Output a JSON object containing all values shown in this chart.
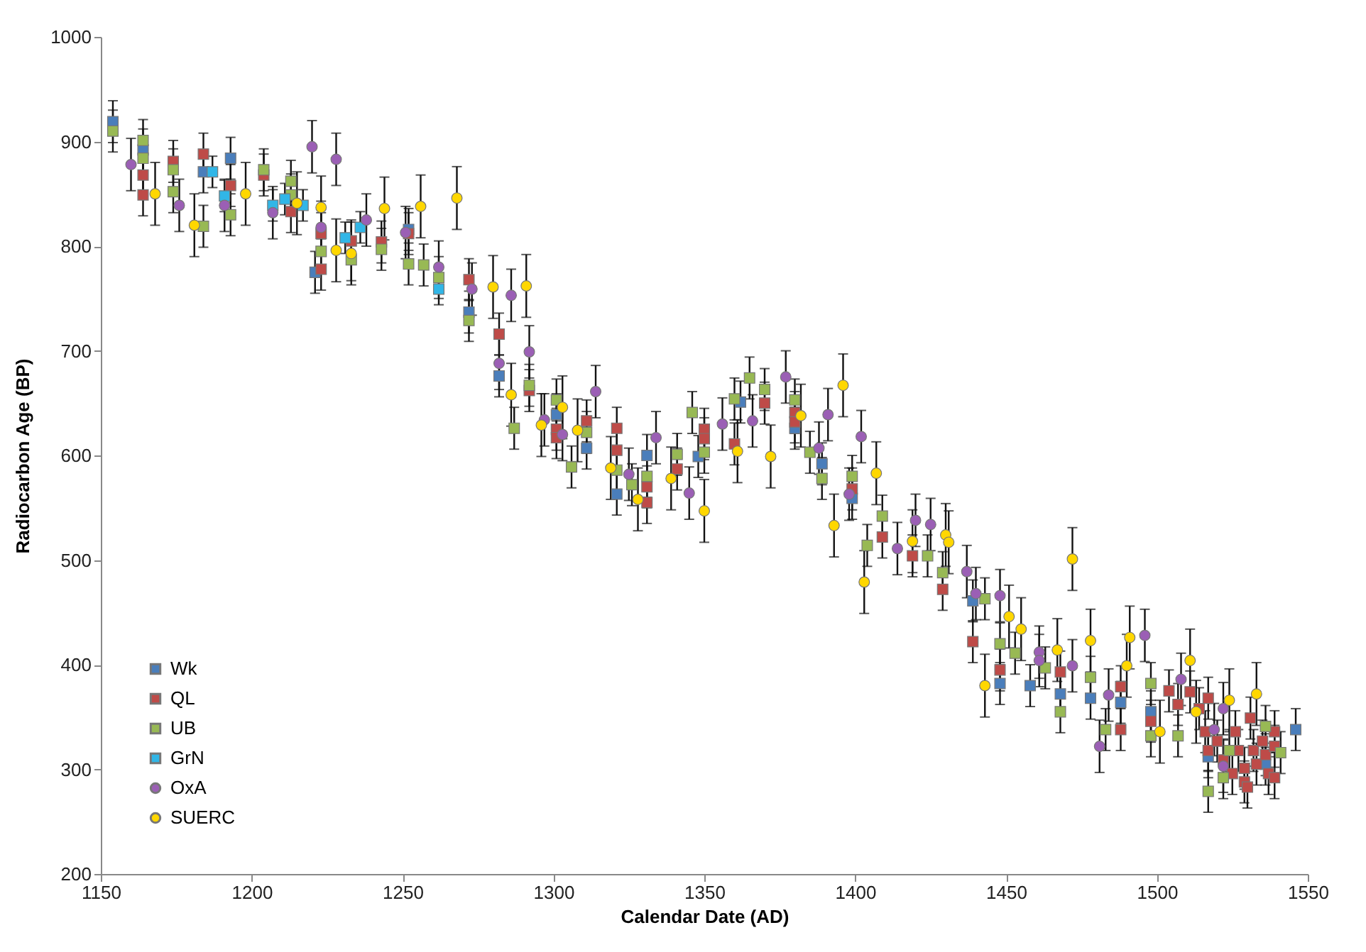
{
  "chart_data": {
    "type": "scatter",
    "xlabel": "Calendar Date (AD)",
    "ylabel": "Radiocarbon Age (BP)",
    "xlim": [
      1150,
      1550
    ],
    "xticks": [
      1150,
      1200,
      1250,
      1300,
      1350,
      1400,
      1450,
      1500,
      1550
    ],
    "ylim": [
      200,
      1000
    ],
    "yticks": [
      200,
      300,
      400,
      500,
      600,
      700,
      800,
      900,
      1000
    ],
    "legend": "bottom left",
    "series": [
      {
        "name": "Wk",
        "color": "#4a7ebb",
        "marker": "square",
        "x": [
          1154,
          1164,
          1184,
          1193,
          1221,
          1252,
          1272,
          1282,
          1301,
          1311,
          1321,
          1331,
          1348,
          1362,
          1380,
          1389,
          1399,
          1439,
          1448,
          1458,
          1468,
          1478,
          1488,
          1498,
          1517,
          1536,
          1546
        ],
        "values": [
          919,
          892,
          871,
          884,
          775,
          816,
          737,
          676,
          639,
          607,
          563,
          600,
          599,
          651,
          626,
          592,
          559,
          461,
          382,
          380,
          372,
          368,
          364,
          355,
          312,
          305,
          338
        ],
        "errors": [
          20,
          20,
          20,
          20,
          20,
          20,
          20,
          20,
          20,
          20,
          20,
          20,
          20,
          20,
          20,
          20,
          20,
          20,
          20,
          20,
          20,
          20,
          20,
          20,
          20,
          20,
          20
        ]
      },
      {
        "name": "QL",
        "color": "#be4b48",
        "marker": "square",
        "x": [
          1164,
          1164,
          1174,
          1184,
          1193,
          1204,
          1213,
          1223,
          1223,
          1233,
          1243,
          1252,
          1272,
          1282,
          1292,
          1301,
          1301,
          1311,
          1321,
          1321,
          1331,
          1331,
          1341,
          1350,
          1350,
          1360,
          1370,
          1380,
          1380,
          1399,
          1409,
          1419,
          1429,
          1439,
          1448,
          1468,
          1488,
          1488,
          1498,
          1504,
          1507,
          1511,
          1514,
          1516,
          1517,
          1517,
          1520,
          1522,
          1525,
          1526,
          1527,
          1529,
          1529,
          1530,
          1531,
          1532,
          1533,
          1535,
          1536,
          1537,
          1539,
          1539,
          1539
        ],
        "values": [
          868,
          849,
          881,
          888,
          858,
          868,
          833,
          812,
          778,
          805,
          804,
          812,
          768,
          716,
          662,
          625,
          617,
          633,
          626,
          605,
          570,
          555,
          587,
          625,
          616,
          611,
          650,
          641,
          632,
          568,
          522,
          504,
          472,
          422,
          395,
          393,
          338,
          379,
          346,
          375,
          362,
          374,
          358,
          336,
          368,
          318,
          327,
          309,
          296,
          336,
          318,
          301,
          288,
          283,
          349,
          318,
          305,
          327,
          314,
          296,
          322,
          336,
          292
        ],
        "errors": [
          20,
          20,
          20,
          20,
          20,
          20,
          20,
          20,
          20,
          20,
          20,
          20,
          20,
          20,
          20,
          20,
          20,
          20,
          20,
          20,
          20,
          20,
          20,
          20,
          20,
          20,
          20,
          20,
          20,
          20,
          20,
          20,
          20,
          20,
          20,
          20,
          20,
          20,
          20,
          20,
          20,
          20,
          20,
          20,
          20,
          20,
          20,
          20,
          20,
          20,
          20,
          20,
          20,
          20,
          20,
          20,
          20,
          20,
          20,
          20,
          20,
          20,
          20
        ]
      },
      {
        "name": "UB",
        "color": "#98b954",
        "marker": "square",
        "x": [
          1154,
          1164,
          1164,
          1174,
          1174,
          1184,
          1193,
          1204,
          1213,
          1213,
          1223,
          1233,
          1243,
          1252,
          1257,
          1262,
          1272,
          1287,
          1292,
          1301,
          1306,
          1311,
          1321,
          1326,
          1331,
          1341,
          1346,
          1350,
          1360,
          1365,
          1370,
          1380,
          1385,
          1389,
          1399,
          1404,
          1409,
          1424,
          1429,
          1443,
          1448,
          1453,
          1463,
          1468,
          1478,
          1483,
          1498,
          1498,
          1507,
          1517,
          1522,
          1524,
          1536,
          1541
        ],
        "values": [
          910,
          901,
          884,
          873,
          852,
          819,
          830,
          873,
          862,
          849,
          795,
          787,
          797,
          783,
          782,
          770,
          729,
          626,
          667,
          653,
          589,
          622,
          586,
          572,
          580,
          601,
          641,
          603,
          654,
          674,
          663,
          653,
          603,
          578,
          580,
          514,
          542,
          504,
          488,
          463,
          420,
          411,
          397,
          355,
          388,
          338,
          382,
          332,
          332,
          279,
          292,
          318,
          341,
          316
        ],
        "errors": [
          20,
          20,
          20,
          20,
          20,
          20,
          20,
          20,
          20,
          20,
          20,
          20,
          20,
          20,
          20,
          20,
          20,
          20,
          20,
          20,
          20,
          20,
          20,
          20,
          20,
          20,
          20,
          20,
          20,
          20,
          20,
          20,
          20,
          20,
          20,
          20,
          20,
          20,
          20,
          20,
          20,
          20,
          20,
          20,
          20,
          20,
          20,
          20,
          20,
          20,
          20,
          20,
          20,
          20
        ]
      },
      {
        "name": "GrN",
        "color": "#31b6e7",
        "marker": "square",
        "x": [
          1187,
          1191,
          1207,
          1211,
          1217,
          1231,
          1236,
          1262
        ],
        "values": [
          871,
          848,
          839,
          845,
          839,
          808,
          818,
          759
        ],
        "errors": [
          15,
          15,
          15,
          15,
          15,
          15,
          15,
          15
        ]
      },
      {
        "name": "OxA",
        "color": "#9b5fb5",
        "marker": "circle",
        "x": [
          1160,
          1176,
          1191,
          1207,
          1220,
          1223,
          1228,
          1238,
          1251,
          1262,
          1273,
          1282,
          1286,
          1292,
          1297,
          1303,
          1314,
          1325,
          1334,
          1345,
          1356,
          1366,
          1377,
          1388,
          1391,
          1398,
          1402,
          1414,
          1420,
          1425,
          1437,
          1440,
          1448,
          1461,
          1461,
          1472,
          1481,
          1484,
          1496,
          1508,
          1519,
          1522,
          1522
        ],
        "values": [
          878,
          839,
          839,
          832,
          895,
          818,
          883,
          825,
          813,
          780,
          759,
          688,
          753,
          699,
          634,
          620,
          661,
          582,
          617,
          564,
          630,
          633,
          675,
          607,
          639,
          563,
          618,
          511,
          538,
          534,
          489,
          468,
          466,
          412,
          404,
          399,
          322,
          371,
          428,
          386,
          338,
          358,
          303
        ],
        "errors": [
          25,
          25,
          25,
          25,
          25,
          25,
          25,
          25,
          25,
          25,
          25,
          25,
          25,
          25,
          25,
          25,
          25,
          25,
          25,
          25,
          25,
          25,
          25,
          25,
          25,
          25,
          25,
          25,
          25,
          25,
          25,
          25,
          25,
          25,
          25,
          25,
          25,
          25,
          25,
          25,
          25,
          25,
          25
        ]
      },
      {
        "name": "SUERC",
        "color": "#ffd700",
        "marker": "circle",
        "x": [
          1168,
          1181,
          1198,
          1215,
          1223,
          1228,
          1233,
          1244,
          1256,
          1268,
          1280,
          1286,
          1291,
          1296,
          1303,
          1308,
          1319,
          1328,
          1339,
          1350,
          1361,
          1372,
          1382,
          1393,
          1396,
          1403,
          1407,
          1419,
          1430,
          1431,
          1443,
          1451,
          1455,
          1467,
          1472,
          1478,
          1490,
          1491,
          1501,
          1511,
          1513,
          1524,
          1533
        ],
        "values": [
          850,
          820,
          850,
          841,
          837,
          796,
          793,
          836,
          838,
          846,
          761,
          658,
          762,
          629,
          646,
          624,
          588,
          558,
          578,
          547,
          604,
          599,
          638,
          533,
          667,
          479,
          583,
          518,
          524,
          517,
          380,
          446,
          434,
          414,
          501,
          423,
          399,
          426,
          336,
          404,
          355,
          366,
          372
        ],
        "errors": [
          30,
          30,
          30,
          30,
          30,
          30,
          30,
          30,
          30,
          30,
          30,
          30,
          30,
          30,
          30,
          30,
          30,
          30,
          30,
          30,
          30,
          30,
          30,
          30,
          30,
          30,
          30,
          30,
          30,
          30,
          30,
          30,
          30,
          30,
          30,
          30,
          30,
          30,
          30,
          30,
          30,
          30,
          30
        ]
      }
    ]
  }
}
